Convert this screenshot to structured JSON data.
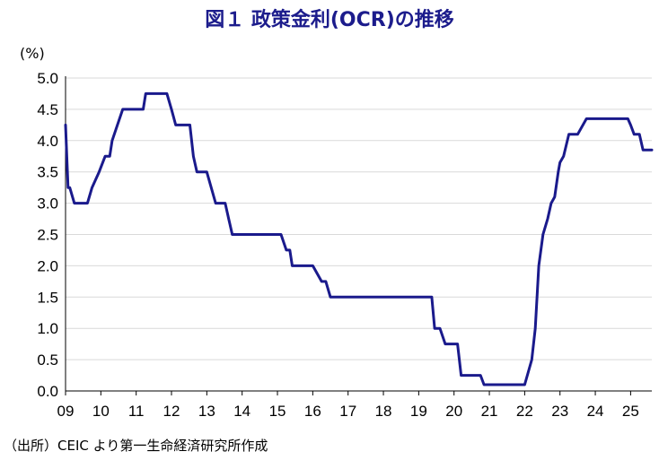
{
  "title": "図１ 政策金利(OCR)の推移",
  "unit_label": "(%)",
  "source_note": "（出所）CEIC より第一生命経済研究所作成",
  "colors": {
    "title": "#1c1c8c",
    "line": "#1a1a8c",
    "grid": "#d9d9d9"
  },
  "chart_data": {
    "type": "line",
    "title": "図１ 政策金利(OCR)の推移",
    "ylabel": "(%)",
    "xlabel": "",
    "ylim": [
      0,
      5.0
    ],
    "xlim": [
      2009.0,
      2025.6
    ],
    "yticks": [
      "0.0",
      "0.5",
      "1.0",
      "1.5",
      "2.0",
      "2.5",
      "3.0",
      "3.5",
      "4.0",
      "4.5",
      "5.0"
    ],
    "xtick_labels": [
      "09",
      "10",
      "11",
      "12",
      "13",
      "14",
      "15",
      "16",
      "17",
      "18",
      "19",
      "20",
      "21",
      "22",
      "23",
      "24",
      "25"
    ],
    "grid": "horizontal",
    "series": [
      {
        "x": [
          2009.0,
          2009.07,
          2009.12,
          2009.25,
          2009.62,
          2009.75,
          2009.95,
          2010.12,
          2010.25,
          2010.32,
          2010.62,
          2010.72,
          2011.2,
          2011.27,
          2011.45,
          2011.62,
          2011.75,
          2011.87,
          2012.0,
          2012.12,
          2012.2,
          2012.3,
          2012.52,
          2012.62,
          2012.72,
          2012.87,
          2013.0,
          2013.25,
          2013.42,
          2013.52,
          2013.62,
          2013.72,
          2014.0,
          2014.5,
          2015.0,
          2015.1,
          2015.25,
          2015.35,
          2015.42,
          2015.5,
          2015.6,
          2015.75,
          2016.0,
          2016.25,
          2016.37,
          2016.5,
          2016.6,
          2016.75,
          2017.0,
          2017.5,
          2018.0,
          2018.5,
          2019.0,
          2019.37,
          2019.45,
          2019.6,
          2019.75,
          2019.85,
          2020.0,
          2020.1,
          2020.2,
          2020.5,
          2020.75,
          2020.85,
          2021.0,
          2021.25,
          2021.5,
          2021.75,
          2022.0,
          2022.2,
          2022.3,
          2022.4,
          2022.52,
          2022.65,
          2022.75,
          2022.85,
          2022.95,
          2023.0,
          2023.1,
          2023.25,
          2023.5,
          2023.75,
          2024.0,
          2024.25,
          2024.5,
          2024.75,
          2024.92,
          2025.0,
          2025.1,
          2025.25,
          2025.35,
          2025.6
        ],
        "y": [
          4.25,
          3.25,
          3.25,
          3.0,
          3.0,
          3.25,
          3.5,
          3.75,
          3.75,
          4.0,
          4.5,
          4.5,
          4.5,
          4.75,
          4.75,
          4.75,
          4.75,
          4.75,
          4.5,
          4.25,
          4.25,
          4.25,
          4.25,
          3.75,
          3.5,
          3.5,
          3.5,
          3.0,
          3.0,
          3.0,
          2.75,
          2.5,
          2.5,
          2.5,
          2.5,
          2.5,
          2.25,
          2.25,
          2.0,
          2.0,
          2.0,
          2.0,
          2.0,
          1.75,
          1.75,
          1.5,
          1.5,
          1.5,
          1.5,
          1.5,
          1.5,
          1.5,
          1.5,
          1.5,
          1.0,
          1.0,
          0.75,
          0.75,
          0.75,
          0.75,
          0.25,
          0.25,
          0.25,
          0.1,
          0.1,
          0.1,
          0.1,
          0.1,
          0.1,
          0.5,
          1.0,
          2.0,
          2.5,
          2.75,
          3.0,
          3.1,
          3.5,
          3.65,
          3.75,
          4.1,
          4.1,
          4.35,
          4.35,
          4.35,
          4.35,
          4.35,
          4.35,
          4.25,
          4.1,
          4.1,
          3.85,
          3.85
        ]
      }
    ]
  }
}
